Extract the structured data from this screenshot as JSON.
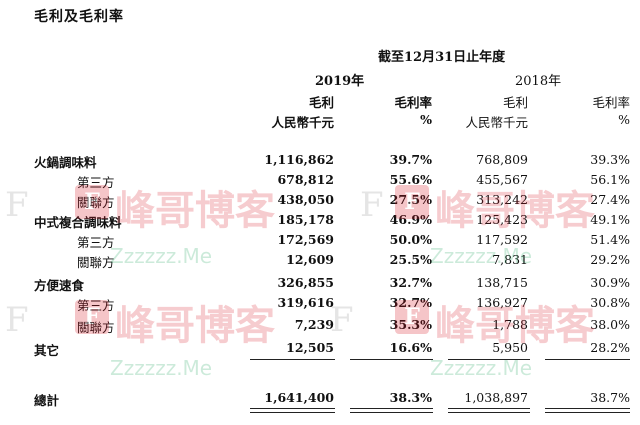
{
  "title": "毛利及毛利率",
  "period": "截至12月31日止年度",
  "years": {
    "y2019": "2019年",
    "y2018": "2018年"
  },
  "headers": {
    "gross_profit": "毛利",
    "gross_margin": "毛利率",
    "unit_rmb": "人民幣千元",
    "unit_pct": "%"
  },
  "rows": [
    {
      "label": "火鍋調味料",
      "level": "main",
      "gp2019": "1,116,862",
      "gm2019": "39.7%",
      "gp2018": "768,809",
      "gm2018": "39.3%"
    },
    {
      "label": "第三方",
      "level": "sub",
      "gp2019": "678,812",
      "gm2019": "55.6%",
      "gp2018": "455,567",
      "gm2018": "56.1%"
    },
    {
      "label": "關聯方",
      "level": "sub",
      "gp2019": "438,050",
      "gm2019": "27.5%",
      "gp2018": "313,242",
      "gm2018": "27.4%"
    },
    {
      "label": "中式複合調味料",
      "level": "main",
      "gp2019": "185,178",
      "gm2019": "46.9%",
      "gp2018": "125,423",
      "gm2018": "49.1%"
    },
    {
      "label": "第三方",
      "level": "sub",
      "gp2019": "172,569",
      "gm2019": "50.0%",
      "gp2018": "117,592",
      "gm2018": "51.4%"
    },
    {
      "label": "關聯方",
      "level": "sub",
      "gp2019": "12,609",
      "gm2019": "25.5%",
      "gp2018": "7,831",
      "gm2018": "29.2%"
    },
    {
      "label": "方便速食",
      "level": "main",
      "gp2019": "326,855",
      "gm2019": "32.7%",
      "gp2018": "138,715",
      "gm2018": "30.9%"
    },
    {
      "label": "第三方",
      "level": "sub",
      "gp2019": "319,616",
      "gm2019": "32.7%",
      "gp2018": "136,927",
      "gm2018": "30.8%"
    },
    {
      "label": "關聯方",
      "level": "sub",
      "gp2019": "7,239",
      "gm2019": "35.3%",
      "gp2018": "1,788",
      "gm2018": "38.0%"
    },
    {
      "label": "其它",
      "level": "main",
      "gp2019": "12,505",
      "gm2019": "16.6%",
      "gp2018": "5,950",
      "gm2018": "28.2%"
    }
  ],
  "total": {
    "label": "總計",
    "gp2019": "1,641,400",
    "gm2019": "38.3%",
    "gp2018": "1,038,897",
    "gm2018": "38.7%"
  },
  "watermark": {
    "brand": "峰哥博客",
    "url": "Zzzzzz.Me",
    "badge_letter": "F",
    "brand_color": "#d91b2a",
    "url_color": "#1aa55a"
  }
}
